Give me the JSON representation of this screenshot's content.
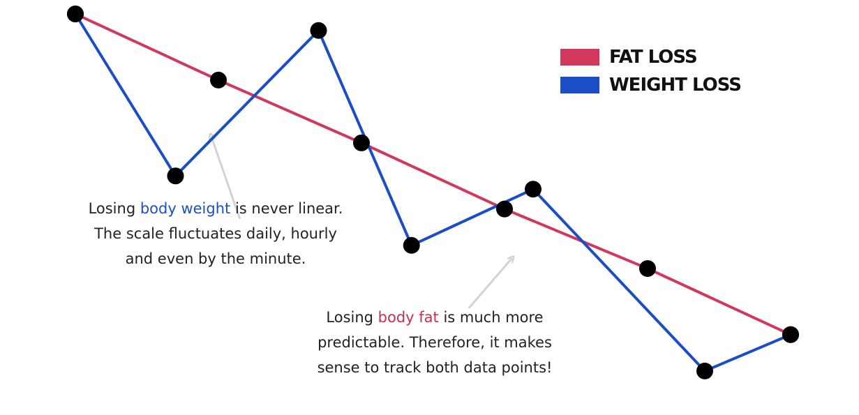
{
  "colors": {
    "fat_loss": "#d2385b",
    "weight_loss": "#1a4dc6",
    "marker": "#000000",
    "arrow": "#d3d3d3",
    "highlight_weight": "#1d4fc4",
    "highlight_fat": "#c42f52"
  },
  "chart_data": {
    "type": "line",
    "title": "",
    "xlabel": "",
    "ylabel": "",
    "xlim": [
      0,
      10
    ],
    "ylim": [
      0,
      10
    ],
    "grid": false,
    "axes_visible": false,
    "legend_position": "top-right",
    "series": [
      {
        "name": "FAT LOSS",
        "color": "#d2385b",
        "x": [
          0,
          2.0,
          4.0,
          6.0,
          8.0,
          10.0
        ],
        "y": [
          10.0,
          8.0,
          6.1,
          4.1,
          2.3,
          0.3
        ],
        "markers": true
      },
      {
        "name": "WEIGHT LOSS",
        "color": "#1a4dc6",
        "x": [
          0,
          1.4,
          3.4,
          4.7,
          6.4,
          8.8,
          10.0
        ],
        "y": [
          10.0,
          5.1,
          9.5,
          3.0,
          4.7,
          -0.8,
          0.3
        ],
        "markers": true
      }
    ],
    "legend": [
      {
        "label": "FAT LOSS",
        "color": "#d2385b"
      },
      {
        "label": "WEIGHT LOSS",
        "color": "#1a4dc6"
      }
    ],
    "annotations": [
      {
        "id": "weight",
        "lines": [
          {
            "pre": "Losing ",
            "hl": "body weight",
            "post": " is never linear."
          },
          {
            "pre": "The scale fluctuates daily, hourly",
            "hl": "",
            "post": ""
          },
          {
            "pre": "and even by the minute.",
            "hl": "",
            "post": ""
          }
        ],
        "arrow_from": {
          "x": 2.3,
          "y": 3.8
        },
        "arrow_to": {
          "x": 1.9,
          "y": 6.3
        }
      },
      {
        "id": "fat",
        "lines": [
          {
            "pre": "Losing ",
            "hl": "body fat",
            "post": " is much more"
          },
          {
            "pre": "predictable. Therefore, it makes",
            "hl": "",
            "post": ""
          },
          {
            "pre": "sense to track both data points!",
            "hl": "",
            "post": ""
          }
        ],
        "arrow_from": {
          "x": 5.5,
          "y": 1.1
        },
        "arrow_to": {
          "x": 6.1,
          "y": 2.6
        }
      }
    ]
  }
}
